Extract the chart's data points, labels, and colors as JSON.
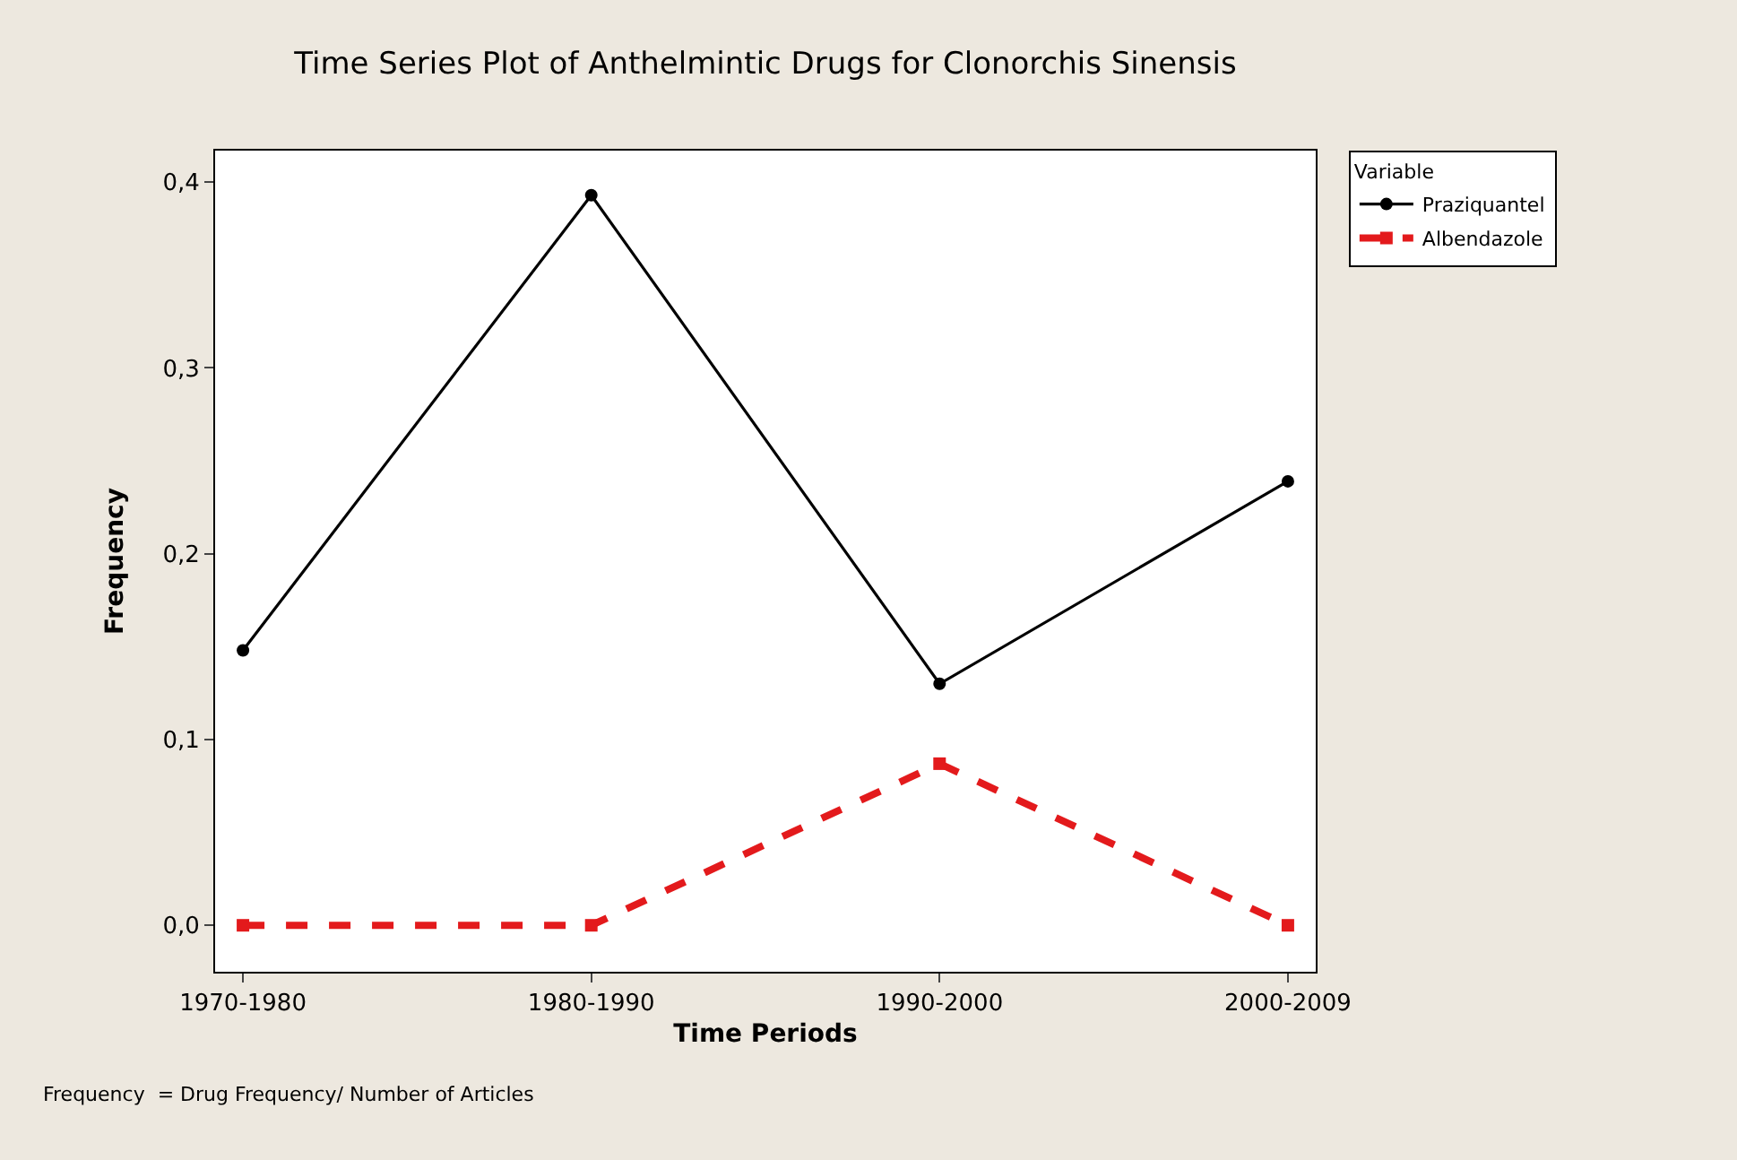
{
  "chart_data": {
    "type": "line",
    "title": "Time Series Plot of Anthelmintic Drugs for Clonorchis Sinensis",
    "xlabel": "Time Periods",
    "ylabel": "Frequency",
    "legend_title": "Variable",
    "categories": [
      "1970-1980",
      "1980-1990",
      "1990-2000",
      "2000-2009"
    ],
    "series": [
      {
        "name": "Praziquantel",
        "color": "#000000",
        "values": [
          0.148,
          0.393,
          0.13,
          0.239
        ],
        "marker": "circle",
        "line_style": "solid"
      },
      {
        "name": "Albendazole",
        "color": "#e31a1c",
        "values": [
          0,
          0,
          0.087,
          0
        ],
        "marker": "square",
        "line_style": "dashed"
      }
    ],
    "ylim": [
      -0.025,
      0.417
    ],
    "yticks": [
      {
        "value": 0,
        "label": "0,0"
      },
      {
        "value": 0.1,
        "label": "0,1"
      },
      {
        "value": 0.2,
        "label": "0,2"
      },
      {
        "value": 0.3,
        "label": "0,3"
      },
      {
        "value": 0.4,
        "label": "0,4"
      }
    ],
    "grid": false,
    "legend": "top right",
    "annotations": [
      "Frequency  = Drug Frequency/ Number of Articles"
    ]
  }
}
